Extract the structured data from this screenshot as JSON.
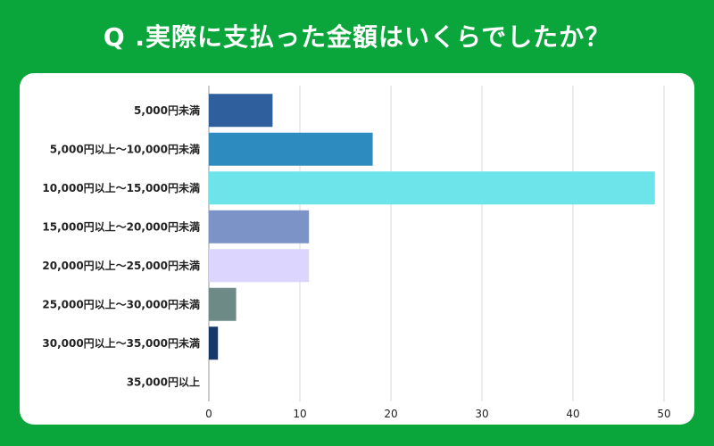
{
  "header": {
    "title": "Q .実際に支払った金額はいくらでしたか？"
  },
  "chart_data": {
    "type": "bar",
    "orientation": "horizontal",
    "title": "Q .実際に支払った金額はいくらでしたか？",
    "categories": [
      "5,000円未満",
      "5,000円以上〜10,000円未満",
      "10,000円以上〜15,000円未満",
      "15,000円以上〜20,000円未満",
      "20,000円以上〜25,000円未満",
      "25,000円以上〜30,000円未満",
      "30,000円以上〜35,000円未満",
      "35,000円以上"
    ],
    "values": [
      7,
      18,
      49,
      11,
      11,
      3,
      1,
      0
    ],
    "colors": [
      "#2f5f9c",
      "#2e8bbf",
      "#6de4ea",
      "#7b93c6",
      "#dcd6ff",
      "#6d8a87",
      "#16386a",
      "#cccccc"
    ],
    "xlim": [
      0,
      50
    ],
    "xticks": [
      0,
      10,
      20,
      30,
      40,
      50
    ],
    "xlabel": "",
    "ylabel": "",
    "grid": true,
    "legend": "none"
  }
}
